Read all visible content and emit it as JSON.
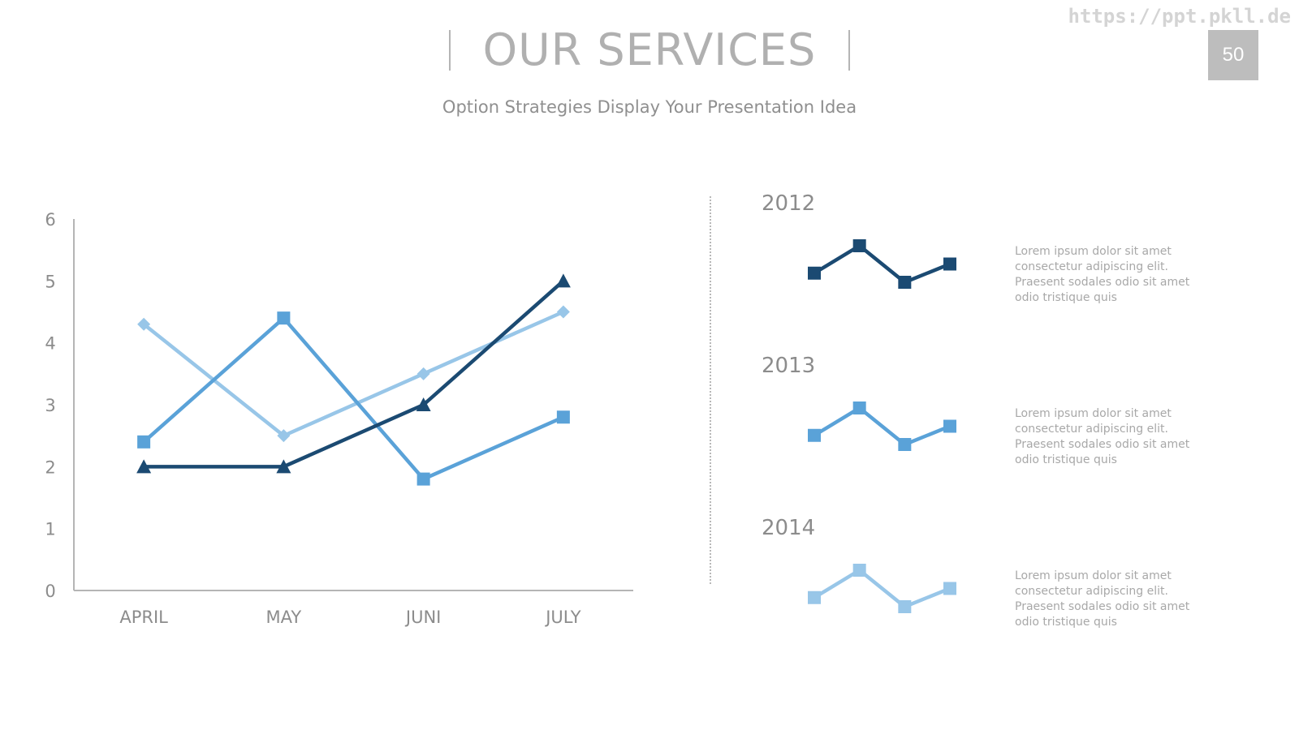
{
  "watermark": "https://ppt.pkll.de",
  "page_number": "50",
  "header": {
    "title": "OUR SERVICES",
    "subtitle": "Option Strategies Display Your Presentation Idea"
  },
  "colors": {
    "dark_blue": "#1b4a72",
    "mid_blue": "#5aa2d8",
    "light_blue": "#98c6e8",
    "axis": "#b5b5b5",
    "tick_text": "#8c8c8c"
  },
  "chart_data": [
    {
      "type": "line",
      "categories": [
        "APRIL",
        "MAY",
        "JUNI",
        "JULY"
      ],
      "ylim": [
        0,
        6
      ],
      "yticks": [
        0,
        1,
        2,
        3,
        4,
        5,
        6
      ],
      "grid": false,
      "legend": "none",
      "series": [
        {
          "color": "#98c6e8",
          "marker": "diamond",
          "values": [
            4.3,
            2.5,
            3.5,
            4.5
          ]
        },
        {
          "color": "#5aa2d8",
          "marker": "square",
          "values": [
            2.4,
            4.4,
            1.8,
            2.8
          ]
        },
        {
          "color": "#1b4a72",
          "marker": "triangle",
          "values": [
            2.0,
            2.0,
            3.0,
            5.0
          ]
        }
      ]
    },
    {
      "type": "line",
      "title": "2012",
      "grid": false,
      "legend": "none",
      "axes": "hidden",
      "series": [
        {
          "color": "#1b4a72",
          "marker": "square",
          "values": [
            3.0,
            3.6,
            2.8,
            3.2
          ]
        }
      ]
    },
    {
      "type": "line",
      "title": "2013",
      "grid": false,
      "legend": "none",
      "axes": "hidden",
      "series": [
        {
          "color": "#5aa2d8",
          "marker": "square",
          "values": [
            3.0,
            3.6,
            2.8,
            3.2
          ]
        }
      ]
    },
    {
      "type": "line",
      "title": "2014",
      "grid": false,
      "legend": "none",
      "axes": "hidden",
      "series": [
        {
          "color": "#98c6e8",
          "marker": "square",
          "values": [
            3.0,
            3.6,
            2.8,
            3.2
          ]
        }
      ]
    }
  ],
  "side_items": [
    {
      "year": "2012",
      "text": "Lorem ipsum dolor sit amet\nconsectetur adipiscing elit.\nPraesent sodales odio sit amet\nodio tristique quis"
    },
    {
      "year": "2013",
      "text": "Lorem ipsum dolor sit amet\nconsectetur adipiscing elit.\nPraesent sodales odio sit amet\nodio tristique quis"
    },
    {
      "year": "2014",
      "text": "Lorem ipsum dolor sit amet\nconsectetur adipiscing elit.\nPraesent sodales odio sit amet\nodio tristique quis"
    }
  ]
}
